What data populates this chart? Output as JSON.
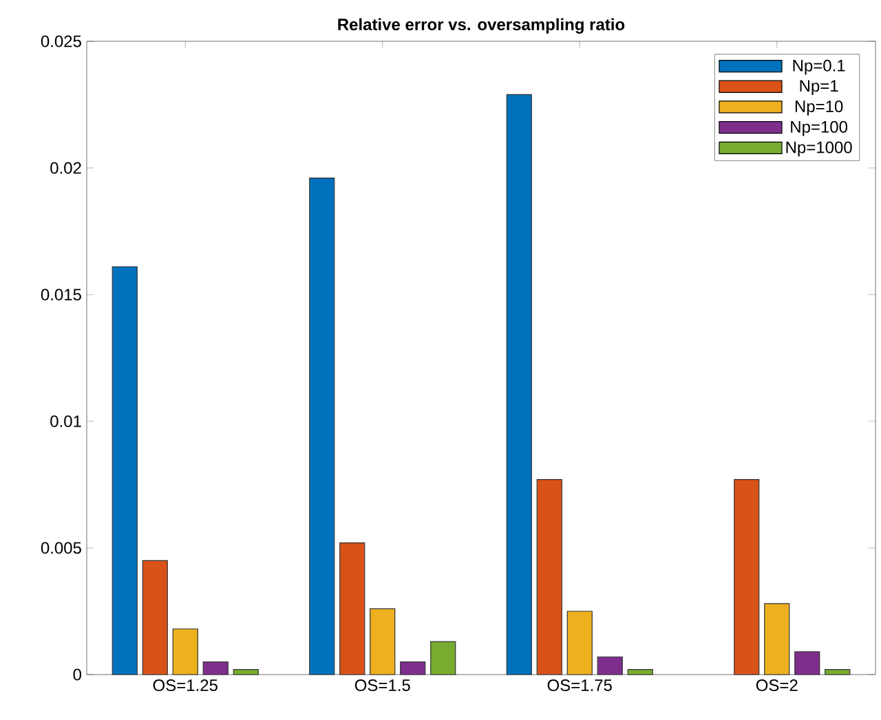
{
  "chart_data": {
    "type": "bar",
    "title": "Relative error vs. oversampling ratio",
    "categories": [
      "OS=1.25",
      "OS=1.5",
      "OS=1.75",
      "OS=2"
    ],
    "series": [
      {
        "name": "Np=0.1",
        "color": "#0072bd",
        "values": [
          0.0161,
          0.0196,
          0.0229,
          null
        ]
      },
      {
        "name": "Np=1",
        "color": "#d95319",
        "values": [
          0.0045,
          0.0052,
          0.0077,
          0.0077
        ]
      },
      {
        "name": "Np=10",
        "color": "#edb120",
        "values": [
          0.0018,
          0.0026,
          0.0025,
          0.0028
        ]
      },
      {
        "name": "Np=100",
        "color": "#7e2f8e",
        "values": [
          0.0005,
          0.0005,
          0.0007,
          0.0009
        ]
      },
      {
        "name": "Np=1000",
        "color": "#77ac30",
        "values": [
          0.0002,
          0.0013,
          0.0002,
          0.0002
        ]
      }
    ],
    "ylim": [
      0,
      0.025
    ],
    "yticks": [
      0,
      0.005,
      0.01,
      0.015,
      0.02,
      0.025
    ],
    "legend": "top right"
  }
}
